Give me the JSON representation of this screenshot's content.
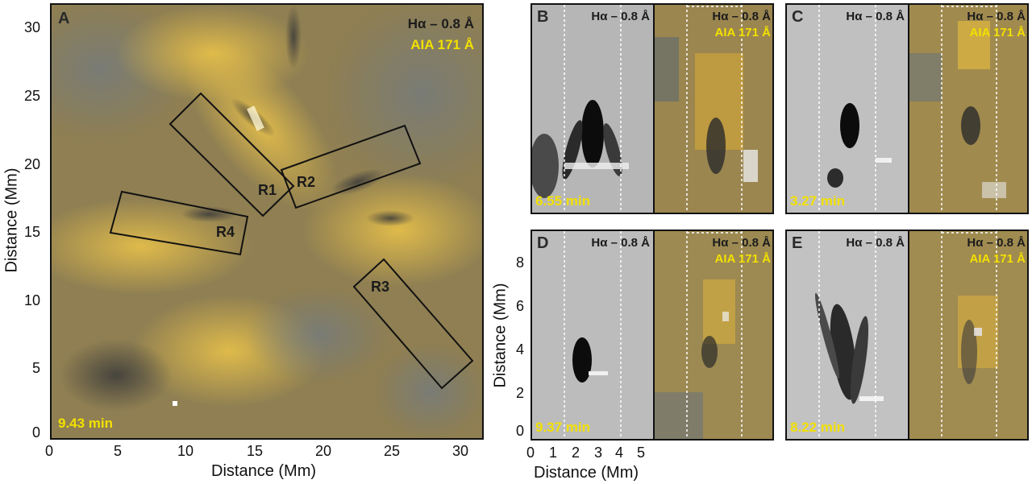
{
  "panel_a": {
    "label": "A",
    "legend_ha": "Hα – 0.8 Å",
    "legend_aia": "AIA 171 Å",
    "time": "9.43 min",
    "regions": [
      "R1",
      "R2",
      "R3",
      "R4"
    ],
    "xlabel": "Distance (Mm)",
    "ylabel": "Distance (Mm)",
    "x_ticks": [
      "0",
      "5",
      "10",
      "15",
      "20",
      "25",
      "30"
    ],
    "y_ticks": [
      "0",
      "5",
      "10",
      "15",
      "20",
      "25",
      "30"
    ]
  },
  "small_panels": [
    {
      "label": "B",
      "time": "6.55 min",
      "ha": "Hα – 0.8 Å",
      "aia_ha": "Hα – 0.8 Å",
      "aia": "AIA 171 Å"
    },
    {
      "label": "C",
      "time": "3.27 min",
      "ha": "Hα – 0.8 Å",
      "aia_ha": "Hα – 0.8 Å",
      "aia": "AIA 171 Å"
    },
    {
      "label": "D",
      "time": "9.37 min",
      "ha": "Hα – 0.8 Å",
      "aia_ha": "Hα – 0.8 Å",
      "aia": "AIA 171 Å"
    },
    {
      "label": "E",
      "time": "8.22 min",
      "ha": "Hα – 0.8 Å",
      "aia_ha": "Hα – 0.8 Å",
      "aia": "AIA 171 Å"
    }
  ],
  "panel_d_axes": {
    "xlabel": "Distance (Mm)",
    "ylabel": "Distance (Mm)",
    "x_ticks": [
      "0",
      "1",
      "2",
      "3",
      "4",
      "5"
    ],
    "y_ticks": [
      "0",
      "2",
      "4",
      "6",
      "8"
    ]
  },
  "colors": {
    "aia_yellow": "#f2e000",
    "solar_base": "#9d8a52"
  }
}
